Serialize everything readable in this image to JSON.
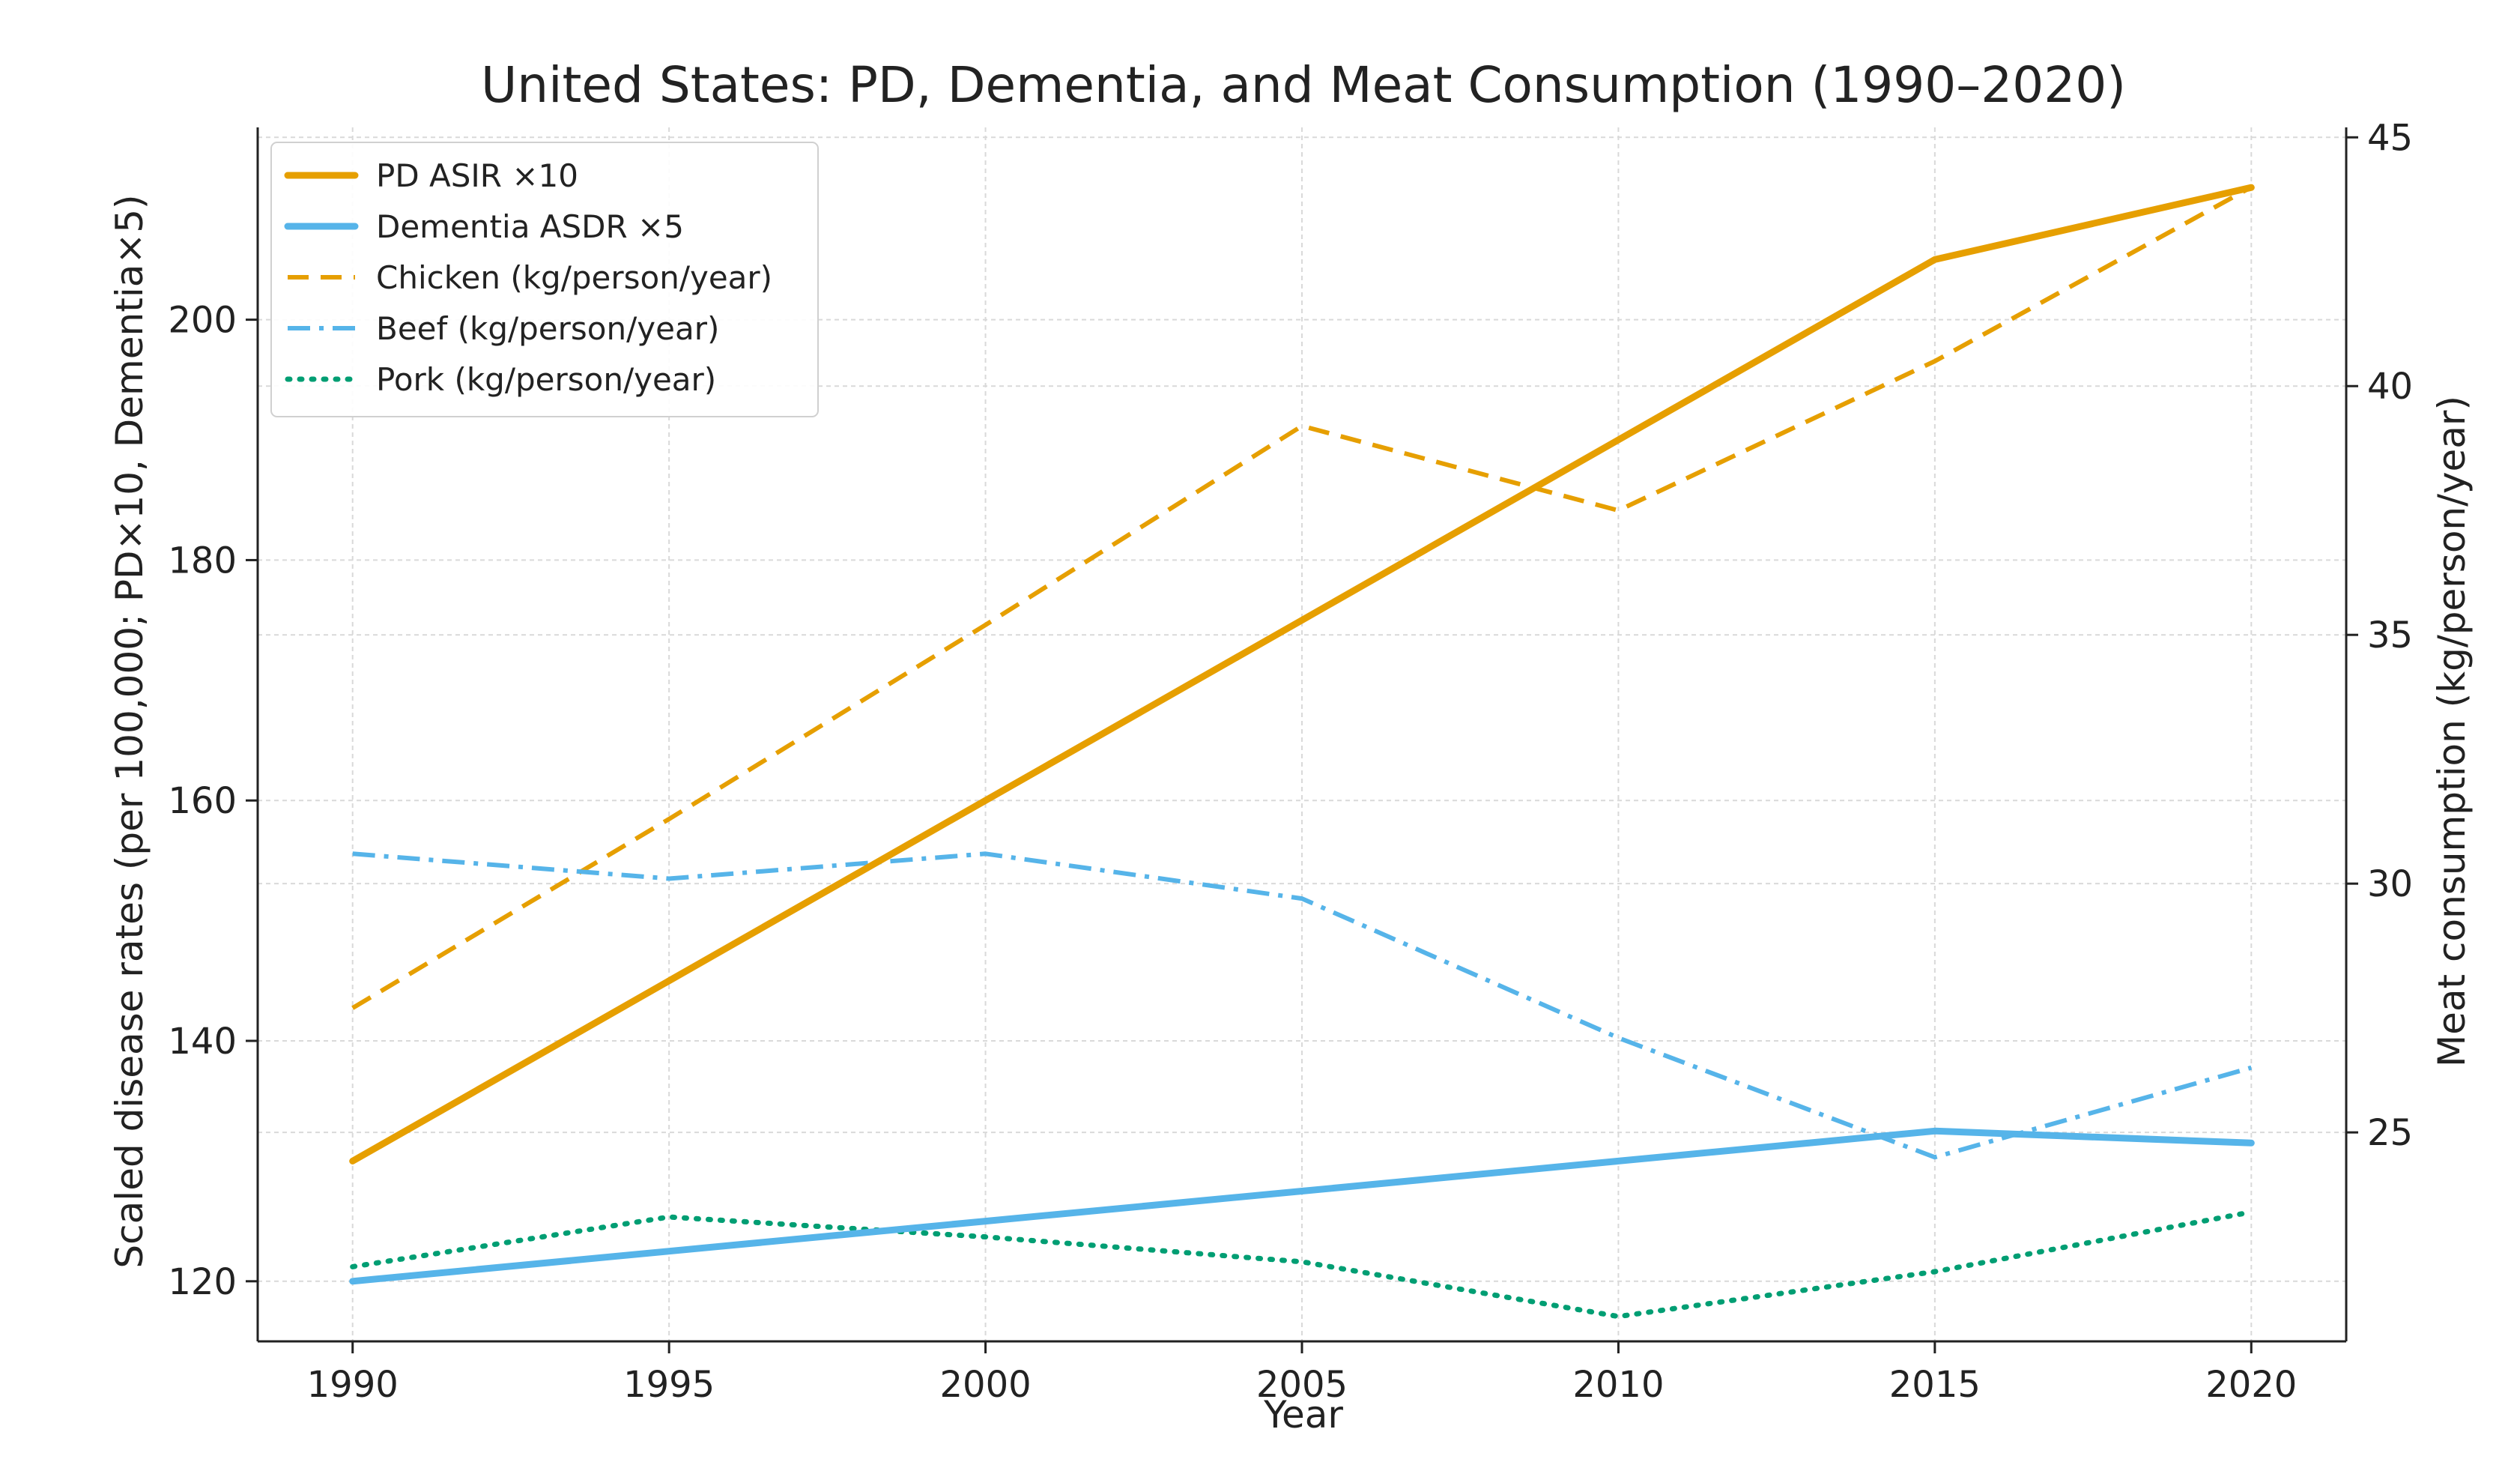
{
  "chart_data": {
    "type": "line",
    "title": "United States: PD, Dementia, and Meat Consumption (1990–2020)",
    "xlabel": "Year",
    "ylabel_left": "Scaled disease rates (per 100,000; PD×10, Dementia×5)",
    "ylabel_right": "Meat consumption (kg/person/year)",
    "x": [
      1990,
      1995,
      2000,
      2005,
      2010,
      2015,
      2020
    ],
    "xlim": [
      1988.5,
      2021.5
    ],
    "ylim_left": [
      115,
      216
    ],
    "ylim_right": [
      20.8,
      45.2
    ],
    "x_ticks": [
      "1990",
      "1995",
      "2000",
      "2005",
      "2010",
      "2015",
      "2020"
    ],
    "y_ticks_left": [
      "120",
      "140",
      "160",
      "180",
      "200"
    ],
    "y_ticks_right": [
      "25",
      "30",
      "35",
      "40",
      "45"
    ],
    "y_tick_values_left": [
      120,
      140,
      160,
      180,
      200
    ],
    "y_tick_values_right": [
      25,
      30,
      35,
      40,
      45
    ],
    "grid": true,
    "legend_position": "top-left",
    "series": [
      {
        "name": "PD ASIR ×10",
        "axis": "left",
        "color": "#E69F00",
        "style": "solid",
        "values": [
          130,
          145,
          160,
          175,
          190,
          205,
          211
        ]
      },
      {
        "name": "Dementia ASDR ×5",
        "axis": "left",
        "color": "#56B4E9",
        "style": "solid",
        "values": [
          120,
          122.5,
          125,
          127.5,
          130,
          132.5,
          131.5
        ]
      },
      {
        "name": "Chicken (kg/person/year)",
        "axis": "right",
        "color": "#E69F00",
        "style": "dashed",
        "values": [
          27.5,
          31.3,
          35.2,
          39.2,
          37.5,
          40.5,
          44.0
        ]
      },
      {
        "name": "Beef (kg/person/year)",
        "axis": "right",
        "color": "#56B4E9",
        "style": "dashdot",
        "values": [
          30.6,
          30.1,
          30.6,
          29.7,
          26.9,
          24.5,
          26.3
        ]
      },
      {
        "name": "Pork (kg/person/year)",
        "axis": "right",
        "color": "#009E73",
        "style": "dotted",
        "values": [
          22.3,
          23.3,
          22.9,
          22.4,
          21.3,
          22.2,
          23.4
        ]
      }
    ]
  }
}
